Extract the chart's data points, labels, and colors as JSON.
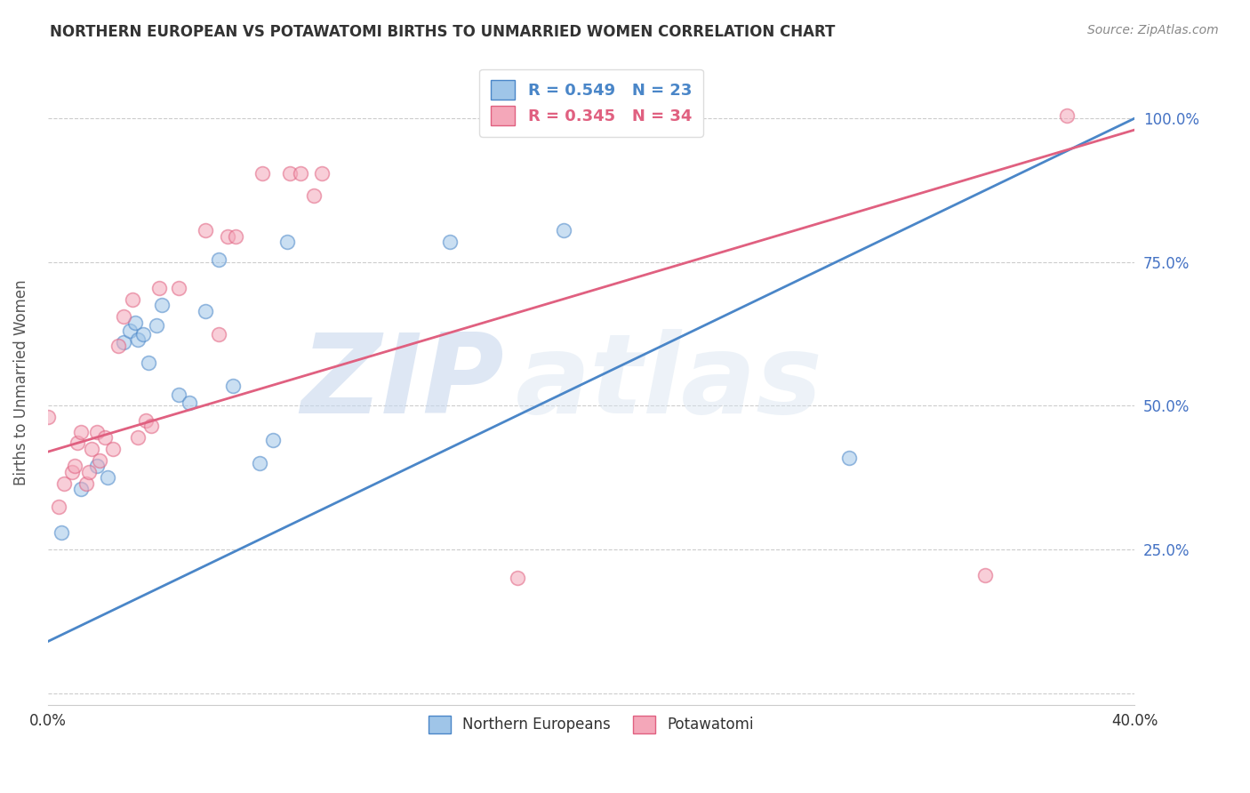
{
  "title": "NORTHERN EUROPEAN VS POTAWATOMI BIRTHS TO UNMARRIED WOMEN CORRELATION CHART",
  "source": "Source: ZipAtlas.com",
  "ylabel_label": "Births to Unmarried Women",
  "xlim": [
    0.0,
    0.4
  ],
  "ylim": [
    -0.02,
    1.1
  ],
  "color_ne": "#9fc5e8",
  "color_pot": "#f4a7b9",
  "color_ne_line": "#4a86c8",
  "color_pot_line": "#e06080",
  "watermark_zip": "ZIP",
  "watermark_atlas": "atlas",
  "ne_x": [
    0.005,
    0.012,
    0.018,
    0.022,
    0.028,
    0.03,
    0.032,
    0.033,
    0.035,
    0.037,
    0.04,
    0.042,
    0.048,
    0.052,
    0.058,
    0.063,
    0.068,
    0.078,
    0.083,
    0.088,
    0.148,
    0.19,
    0.295
  ],
  "ne_y": [
    0.28,
    0.355,
    0.395,
    0.375,
    0.61,
    0.63,
    0.645,
    0.615,
    0.625,
    0.575,
    0.64,
    0.675,
    0.52,
    0.505,
    0.665,
    0.755,
    0.535,
    0.4,
    0.44,
    0.785,
    0.785,
    0.805,
    0.41
  ],
  "pot_x": [
    0.0,
    0.004,
    0.006,
    0.009,
    0.01,
    0.011,
    0.012,
    0.014,
    0.015,
    0.016,
    0.018,
    0.019,
    0.021,
    0.024,
    0.026,
    0.028,
    0.031,
    0.033,
    0.036,
    0.038,
    0.041,
    0.048,
    0.058,
    0.063,
    0.066,
    0.069,
    0.079,
    0.089,
    0.093,
    0.098,
    0.101,
    0.173,
    0.345,
    0.375
  ],
  "pot_y": [
    0.48,
    0.325,
    0.365,
    0.385,
    0.395,
    0.435,
    0.455,
    0.365,
    0.385,
    0.425,
    0.455,
    0.405,
    0.445,
    0.425,
    0.605,
    0.655,
    0.685,
    0.445,
    0.475,
    0.465,
    0.705,
    0.705,
    0.805,
    0.625,
    0.795,
    0.795,
    0.905,
    0.905,
    0.905,
    0.865,
    0.905,
    0.2,
    0.205,
    1.005
  ],
  "ne_line_x": [
    0.0,
    0.4
  ],
  "ne_line_y": [
    0.09,
    1.0
  ],
  "pot_line_x": [
    0.0,
    0.4
  ],
  "pot_line_y": [
    0.42,
    0.98
  ],
  "background_color": "#ffffff",
  "grid_color": "#cccccc",
  "title_color": "#333333",
  "axis_label_color": "#555555",
  "tick_color_x": "#333333",
  "tick_color_y": "#4472c4",
  "dot_size": 130,
  "dot_alpha": 0.55,
  "dot_linewidth": 1.2,
  "legend_ne_label": "R = 0.549   N = 23",
  "legend_pot_label": "R = 0.345   N = 34",
  "bottom_ne_label": "Northern Europeans",
  "bottom_pot_label": "Potawatomi"
}
